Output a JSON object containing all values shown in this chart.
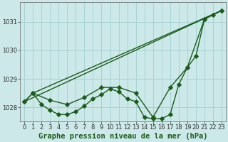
{
  "xlabel": "Graphe pression niveau de la mer (hPa)",
  "background_color": "#cce8e8",
  "plot_bg_color": "#cce8e8",
  "grid_color": "#99cccc",
  "line_color": "#1a5c1a",
  "xlim": [
    -0.5,
    23.5
  ],
  "ylim": [
    1027.5,
    1031.7
  ],
  "yticks": [
    1028,
    1029,
    1030,
    1031
  ],
  "xticks": [
    0,
    1,
    2,
    3,
    4,
    5,
    6,
    7,
    8,
    9,
    10,
    11,
    12,
    13,
    14,
    15,
    16,
    17,
    18,
    19,
    20,
    21,
    22,
    23
  ],
  "series_main_x": [
    0,
    1,
    2,
    3,
    4,
    5,
    6,
    7,
    8,
    9,
    10,
    11,
    12,
    13,
    14,
    15,
    16,
    17,
    18,
    19,
    20,
    21,
    22,
    23
  ],
  "series_main_y": [
    1028.2,
    1028.5,
    1028.1,
    1027.9,
    1027.75,
    1027.75,
    1027.85,
    1028.05,
    1028.3,
    1028.45,
    1028.65,
    1028.55,
    1028.3,
    1028.2,
    1027.65,
    1027.6,
    1027.6,
    1027.75,
    1028.8,
    1029.4,
    1029.8,
    1031.1,
    1031.25,
    1031.4
  ],
  "series_sparse_x": [
    0,
    1,
    3,
    5,
    7,
    9,
    11,
    13,
    15,
    17,
    19,
    21,
    23
  ],
  "series_sparse_y": [
    1028.2,
    1028.5,
    1028.25,
    1028.1,
    1028.35,
    1028.7,
    1028.7,
    1028.5,
    1027.65,
    1028.7,
    1029.4,
    1031.1,
    1031.4
  ],
  "line1_x": [
    0,
    23
  ],
  "line1_y": [
    1028.2,
    1031.4
  ],
  "line2_x": [
    1,
    23
  ],
  "line2_y": [
    1028.5,
    1031.4
  ],
  "marker_size": 2.8,
  "line_width": 1.0,
  "xlabel_fontsize": 7.5,
  "tick_fontsize": 6.0
}
